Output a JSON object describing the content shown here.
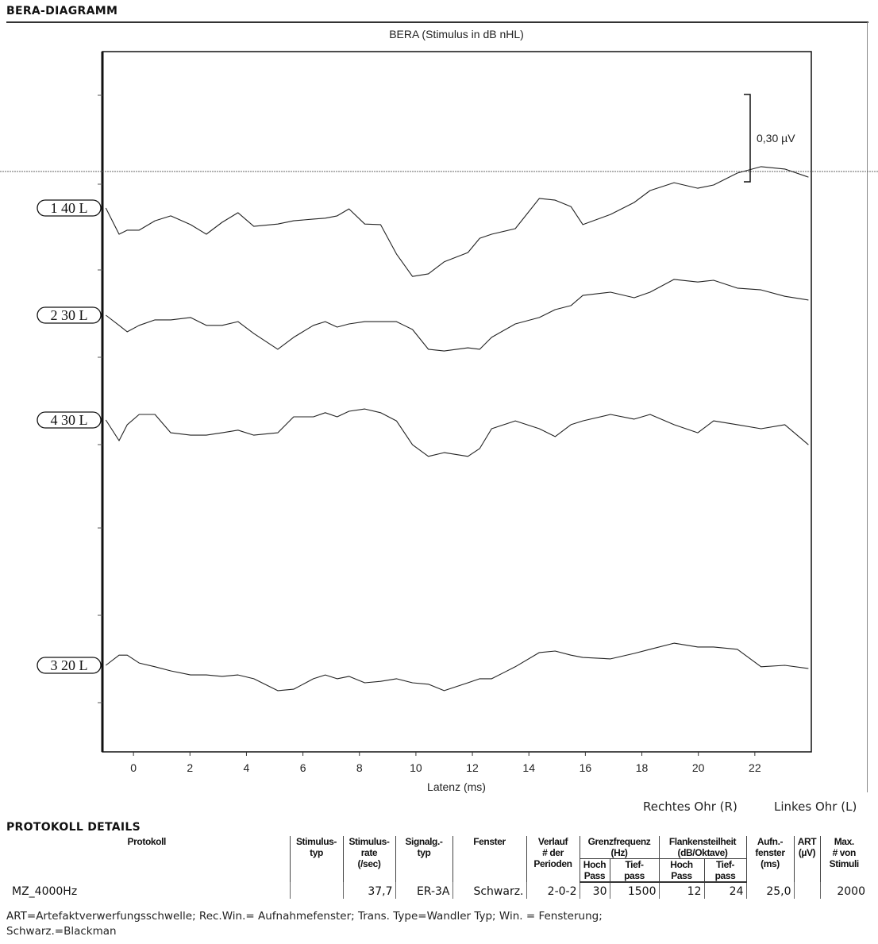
{
  "section_titles": {
    "diagram": "BERA-DIAGRAMM",
    "protocol": "PROTOKOLL DETAILS"
  },
  "chart_data": {
    "type": "line",
    "title": "BERA (Stimulus in dB nHL)",
    "xlabel": "Latenz (ms)",
    "ylabel": "",
    "xlim": [
      -1.1,
      24.0
    ],
    "xticks": [
      0,
      2,
      4,
      6,
      8,
      10,
      12,
      14,
      16,
      18,
      20,
      22
    ],
    "scale_bar_label": "0,30 µV",
    "scale_bar_value_uV": 0.3,
    "grid": false,
    "line_color": "#222222",
    "x": [
      -0.98,
      -0.51,
      -0.22,
      0.2,
      0.76,
      1.32,
      2.02,
      2.58,
      3.14,
      3.7,
      4.26,
      5.11,
      5.67,
      6.37,
      6.79,
      7.21,
      7.63,
      8.19,
      8.75,
      9.31,
      9.88,
      10.44,
      11.0,
      11.84,
      12.26,
      12.68,
      13.52,
      14.37,
      14.93,
      15.49,
      15.91,
      16.89,
      17.73,
      18.29,
      19.14,
      19.98,
      20.54,
      21.38,
      22.22,
      23.06,
      23.9
    ],
    "series": [
      {
        "name": "1 40 L",
        "values": [
          0,
          -0.09,
          -0.076,
          -0.076,
          -0.044,
          -0.027,
          -0.057,
          -0.09,
          -0.049,
          -0.016,
          -0.063,
          -0.055,
          -0.044,
          -0.038,
          -0.035,
          -0.027,
          -0.003,
          -0.055,
          -0.057,
          -0.158,
          -0.235,
          -0.226,
          -0.185,
          -0.153,
          -0.104,
          -0.09,
          -0.071,
          0.033,
          0.027,
          0.005,
          -0.057,
          -0.022,
          0.019,
          0.06,
          0.087,
          0.068,
          0.079,
          0.12,
          0.142,
          0.134,
          0.106
        ]
      },
      {
        "name": "2 30 L",
        "values": [
          0,
          -0.035,
          -0.057,
          -0.035,
          -0.016,
          -0.016,
          -0.008,
          -0.035,
          -0.035,
          -0.022,
          -0.063,
          -0.117,
          -0.076,
          -0.035,
          -0.022,
          -0.041,
          -0.03,
          -0.022,
          -0.022,
          -0.022,
          -0.049,
          -0.117,
          -0.123,
          -0.112,
          -0.117,
          -0.076,
          -0.03,
          -0.008,
          0.019,
          0.033,
          0.068,
          0.079,
          0.06,
          0.079,
          0.123,
          0.114,
          0.12,
          0.093,
          0.087,
          0.065,
          0.052
        ]
      },
      {
        "name": "4 30 L",
        "values": [
          0,
          -0.071,
          -0.016,
          0.019,
          0.019,
          -0.044,
          -0.052,
          -0.052,
          -0.044,
          -0.035,
          -0.052,
          -0.044,
          0.011,
          0.011,
          0.025,
          0.011,
          0.03,
          0.038,
          0.025,
          -0.003,
          -0.085,
          -0.125,
          -0.112,
          -0.125,
          -0.098,
          -0.03,
          -0.003,
          -0.03,
          -0.057,
          -0.016,
          -0.003,
          0.019,
          0.003,
          0.019,
          -0.016,
          -0.044,
          -0.003,
          -0.016,
          -0.03,
          -0.016,
          -0.085
        ]
      },
      {
        "name": "3 20 L",
        "values": [
          0,
          0.035,
          0.035,
          0.008,
          -0.005,
          -0.019,
          -0.033,
          -0.033,
          -0.038,
          -0.033,
          -0.046,
          -0.087,
          -0.082,
          -0.046,
          -0.033,
          -0.046,
          -0.038,
          -0.06,
          -0.055,
          -0.046,
          -0.06,
          -0.065,
          -0.087,
          -0.06,
          -0.046,
          -0.046,
          -0.005,
          0.044,
          0.049,
          0.035,
          0.027,
          0.022,
          0.041,
          0.055,
          0.076,
          0.063,
          0.063,
          0.055,
          -0.005,
          0,
          -0.011
        ]
      }
    ]
  },
  "legend": {
    "right": "Rechtes Ohr (R)",
    "left": "Linkes Ohr (L)"
  },
  "protocol_table": {
    "headers": {
      "protokoll": "Protokoll",
      "stimulus_typ": [
        "Stimulus-",
        "typ"
      ],
      "stimulus_rate": [
        "Stimulus-",
        "rate",
        "(/sec)"
      ],
      "signal_typ": [
        "Signalg.-",
        "typ"
      ],
      "fenster": "Fenster",
      "verlauf": [
        "Verlauf",
        "# der",
        "Perioden"
      ],
      "grenzfrequenz": [
        "Grenzfrequenz",
        "(Hz)"
      ],
      "flankensteilheit": [
        "Flankensteilheit",
        "(dB/Oktave)"
      ],
      "hoch_pass": [
        "Hoch",
        "Pass"
      ],
      "tief_pass": [
        "Tief-",
        "pass"
      ],
      "aufn": [
        "Aufn.-",
        "fenster",
        "(ms)"
      ],
      "art": [
        "ART",
        "(µV)"
      ],
      "max": [
        "Max.",
        "# von",
        "Stimuli"
      ]
    },
    "rows": [
      {
        "protokoll": "MZ_4000Hz",
        "stimulus_typ": "",
        "stimulus_rate": "37,7",
        "signal_typ": "ER-3A",
        "fenster": "Schwarz.",
        "verlauf": "2-0-2",
        "gf_hoch": "30",
        "gf_tief": "1500",
        "fs_hoch": "12",
        "fs_tief": "24",
        "aufn": "25,0",
        "art": "",
        "max": "2000"
      }
    ]
  },
  "footnote": {
    "line1": "ART=Artefaktverwerfungsschwelle; Rec.Win.= Aufnahmefenster; Trans. Type=Wandler Typ; Win. = Fensterung;",
    "line2": "Schwarz.=Blackman"
  }
}
